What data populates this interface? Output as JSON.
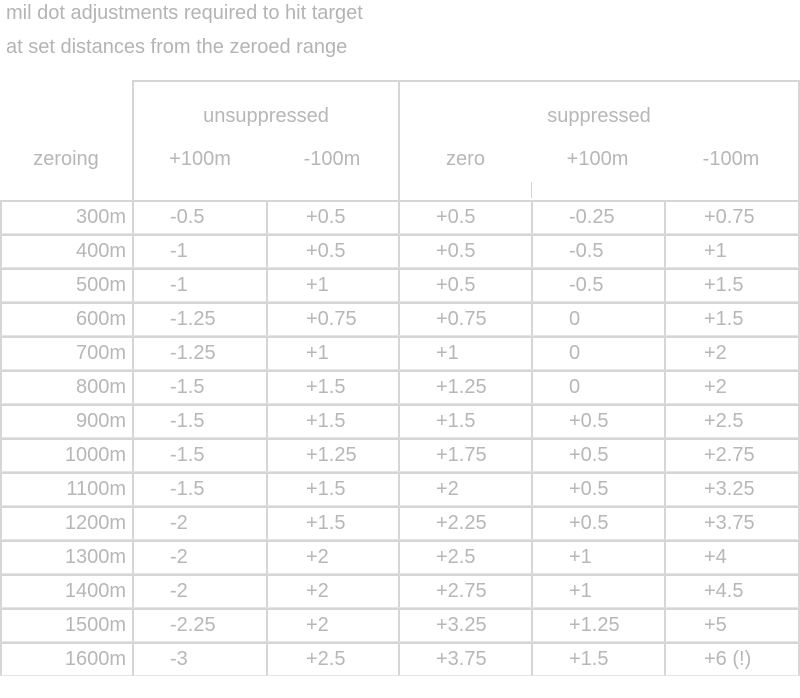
{
  "title": {
    "line1": "mil dot adjustments required to hit target",
    "line2": "at set distances from the zeroed range"
  },
  "header": {
    "groups": {
      "unsuppressed": "unsuppressed",
      "suppressed": "suppressed"
    },
    "columns": {
      "zeroing": "zeroing",
      "unsup_plus": "+100m",
      "unsup_minus": "-100m",
      "sup_zero": "zero",
      "sup_plus": "+100m",
      "sup_minus": "-100m"
    }
  },
  "rows": [
    {
      "zeroing": "300m",
      "unsup_plus": "-0.5",
      "unsup_minus": "+0.5",
      "sup_zero": "+0.5",
      "sup_plus": "-0.25",
      "sup_minus": "+0.75"
    },
    {
      "zeroing": "400m",
      "unsup_plus": "-1",
      "unsup_minus": "+0.5",
      "sup_zero": "+0.5",
      "sup_plus": "-0.5",
      "sup_minus": "+1"
    },
    {
      "zeroing": "500m",
      "unsup_plus": "-1",
      "unsup_minus": "+1",
      "sup_zero": "+0.5",
      "sup_plus": "-0.5",
      "sup_minus": "+1.5"
    },
    {
      "zeroing": "600m",
      "unsup_plus": "-1.25",
      "unsup_minus": "+0.75",
      "sup_zero": "+0.75",
      "sup_plus": "0",
      "sup_minus": "+1.5"
    },
    {
      "zeroing": "700m",
      "unsup_plus": "-1.25",
      "unsup_minus": "+1",
      "sup_zero": "+1",
      "sup_plus": "0",
      "sup_minus": "+2"
    },
    {
      "zeroing": "800m",
      "unsup_plus": "-1.5",
      "unsup_minus": "+1.5",
      "sup_zero": "+1.25",
      "sup_plus": "0",
      "sup_minus": "+2"
    },
    {
      "zeroing": "900m",
      "unsup_plus": "-1.5",
      "unsup_minus": "+1.5",
      "sup_zero": "+1.5",
      "sup_plus": "+0.5",
      "sup_minus": "+2.5"
    },
    {
      "zeroing": "1000m",
      "unsup_plus": "-1.5",
      "unsup_minus": "+1.25",
      "sup_zero": "+1.75",
      "sup_plus": "+0.5",
      "sup_minus": "+2.75"
    },
    {
      "zeroing": "1100m",
      "unsup_plus": "-1.5",
      "unsup_minus": "+1.5",
      "sup_zero": "+2",
      "sup_plus": "+0.5",
      "sup_minus": "+3.25"
    },
    {
      "zeroing": "1200m",
      "unsup_plus": "-2",
      "unsup_minus": "+1.5",
      "sup_zero": "+2.25",
      "sup_plus": "+0.5",
      "sup_minus": "+3.75"
    },
    {
      "zeroing": "1300m",
      "unsup_plus": "-2",
      "unsup_minus": "+2",
      "sup_zero": "+2.5",
      "sup_plus": "+1",
      "sup_minus": "+4"
    },
    {
      "zeroing": "1400m",
      "unsup_plus": "-2",
      "unsup_minus": "+2",
      "sup_zero": "+2.75",
      "sup_plus": "+1",
      "sup_minus": "+4.5"
    },
    {
      "zeroing": "1500m",
      "unsup_plus": "-2.25",
      "unsup_minus": "+2",
      "sup_zero": "+3.25",
      "sup_plus": "+1.25",
      "sup_minus": "+5"
    },
    {
      "zeroing": "1600m",
      "unsup_plus": "-3",
      "unsup_minus": "+2.5",
      "sup_zero": "+3.75",
      "sup_plus": "+1.5",
      "sup_minus": "+6 (!)"
    }
  ]
}
